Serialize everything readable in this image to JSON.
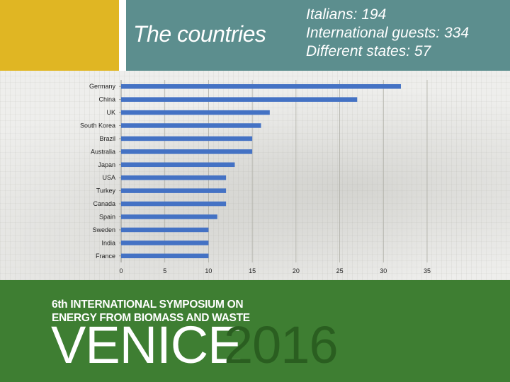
{
  "header": {
    "title": "The countries",
    "stats": [
      {
        "label": "Italians: ",
        "value": "194"
      },
      {
        "label": "International guests: ",
        "value": "334"
      },
      {
        "label": "Different states: ",
        "value": "57"
      }
    ]
  },
  "footer": {
    "line1": "6th INTERNATIONAL SYMPOSIUM ON",
    "line2": "ENERGY FROM BIOMASS AND WASTE",
    "city": "VENICE",
    "year": "2016"
  },
  "colors": {
    "yellow": "#E0B623",
    "teal": "#5C8E8E",
    "green": "#3E7E32",
    "dark_green": "#2A5E20",
    "bar": "#4472C4"
  },
  "chart_data": {
    "type": "bar",
    "orientation": "horizontal",
    "categories": [
      "Germany",
      "China",
      "UK",
      "South Korea",
      "Brazil",
      "Australia",
      "Japan",
      "USA",
      "Turkey",
      "Canada",
      "Spain",
      "Sweden",
      "India",
      "France"
    ],
    "values": [
      32,
      27,
      17,
      16,
      15,
      15,
      13,
      12,
      12,
      12,
      11,
      10,
      10,
      10
    ],
    "xlim": [
      0,
      35
    ],
    "xticks": [
      0,
      5,
      10,
      15,
      20,
      25,
      30,
      35
    ],
    "grid": true,
    "title": "",
    "xlabel": "",
    "ylabel": ""
  }
}
